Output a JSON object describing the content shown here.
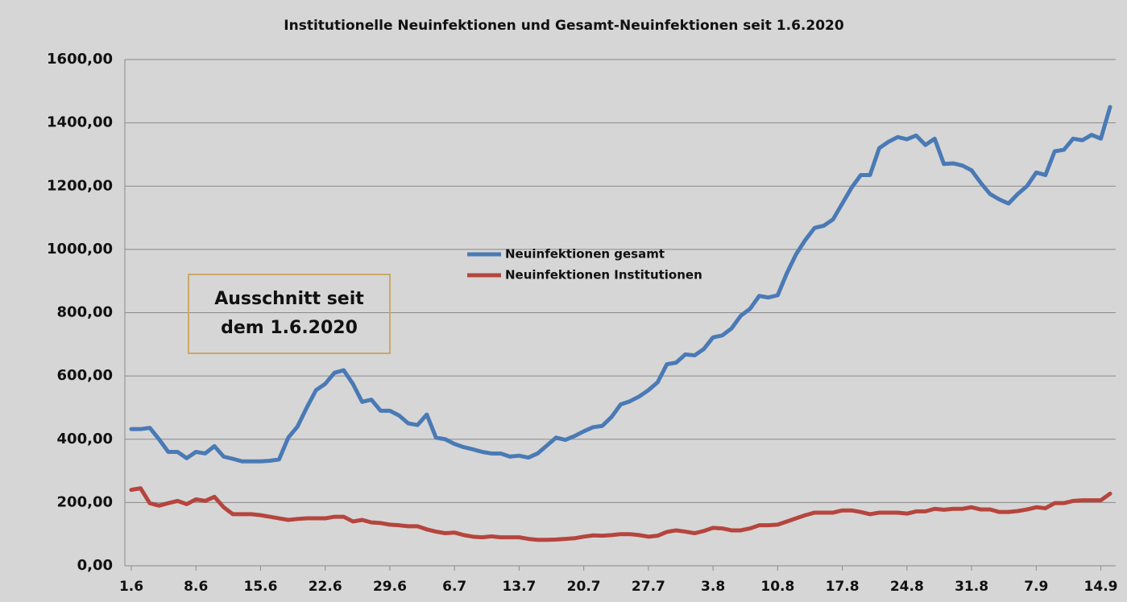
{
  "chart_data": {
    "type": "line",
    "title": "Institutionelle Neuinfektionen und Gesamt-Neuinfektionen seit 1.6.2020",
    "annotation": "Ausschnitt seit dem 1.6.2020",
    "categories": [
      "1.6",
      null,
      null,
      null,
      null,
      null,
      null,
      "8.6",
      null,
      null,
      null,
      null,
      null,
      null,
      "15.6",
      null,
      null,
      null,
      null,
      null,
      null,
      "22.6",
      null,
      null,
      null,
      null,
      null,
      null,
      "29.6",
      null,
      null,
      null,
      null,
      null,
      null,
      "6.7",
      null,
      null,
      null,
      null,
      null,
      null,
      "13.7",
      null,
      null,
      null,
      null,
      null,
      null,
      "20.7",
      null,
      null,
      null,
      null,
      null,
      null,
      "27.7",
      null,
      null,
      null,
      null,
      null,
      null,
      "3.8",
      null,
      null,
      null,
      null,
      null,
      null,
      "10.8",
      null,
      null,
      null,
      null,
      null,
      null,
      "17.8",
      null,
      null,
      null,
      null,
      null,
      null,
      "24.8",
      null,
      null,
      null,
      null,
      null,
      null,
      "31.8",
      null,
      null,
      null,
      null,
      null,
      null,
      "7.9",
      null,
      null,
      null,
      null,
      null,
      null,
      "14.9",
      null
    ],
    "series": [
      {
        "name": "Neuinfektionen gesamt",
        "color": "#4a7ab5",
        "values": [
          432,
          432,
          436,
          400,
          360,
          360,
          340,
          360,
          355,
          378,
          345,
          338,
          330,
          330,
          330,
          332,
          336,
          405,
          440,
          500,
          555,
          575,
          610,
          618,
          575,
          518,
          525,
          490,
          490,
          475,
          450,
          445,
          478,
          405,
          400,
          385,
          375,
          368,
          360,
          355,
          355,
          345,
          348,
          342,
          355,
          380,
          405,
          398,
          410,
          425,
          438,
          442,
          470,
          510,
          520,
          535,
          555,
          580,
          637,
          642,
          668,
          665,
          685,
          722,
          728,
          750,
          790,
          812,
          853,
          848,
          855,
          925,
          985,
          1030,
          1068,
          1075,
          1095,
          1145,
          1195,
          1235,
          1235,
          1320,
          1340,
          1355,
          1348,
          1360,
          1330,
          1350,
          1270,
          1272,
          1265,
          1250,
          1210,
          1175,
          1158,
          1145,
          1175,
          1200,
          1243,
          1235,
          1310,
          1315,
          1350,
          1345,
          1362,
          1350,
          1450
        ]
      },
      {
        "name": "Neuinfektionen Institutionen",
        "color": "#b5453e",
        "values": [
          240,
          245,
          198,
          190,
          198,
          205,
          195,
          210,
          205,
          218,
          185,
          163,
          163,
          163,
          160,
          155,
          150,
          145,
          148,
          150,
          150,
          150,
          155,
          155,
          140,
          145,
          137,
          135,
          130,
          128,
          125,
          125,
          115,
          108,
          103,
          105,
          97,
          92,
          90,
          93,
          90,
          90,
          90,
          85,
          82,
          82,
          83,
          85,
          87,
          92,
          96,
          95,
          97,
          100,
          100,
          97,
          92,
          95,
          107,
          112,
          108,
          103,
          110,
          120,
          118,
          112,
          112,
          118,
          128,
          128,
          130,
          140,
          150,
          160,
          168,
          168,
          168,
          175,
          175,
          170,
          163,
          168,
          168,
          168,
          165,
          172,
          172,
          180,
          177,
          180,
          180,
          185,
          178,
          178,
          170,
          170,
          173,
          178,
          185,
          182,
          198,
          198,
          205,
          207,
          207,
          207,
          228
        ]
      }
    ],
    "ylim": [
      0,
      1600
    ],
    "yticks": [
      {
        "value": 0,
        "label": "0,00"
      },
      {
        "value": 200,
        "label": "200,00"
      },
      {
        "value": 400,
        "label": "400,00"
      },
      {
        "value": 600,
        "label": "600,00"
      },
      {
        "value": 800,
        "label": "800,00"
      },
      {
        "value": 1000,
        "label": "1000,00"
      },
      {
        "value": 1200,
        "label": "1200,00"
      },
      {
        "value": 1400,
        "label": "1400,00"
      },
      {
        "value": 1600,
        "label": "1600,00"
      }
    ],
    "grid": true
  }
}
